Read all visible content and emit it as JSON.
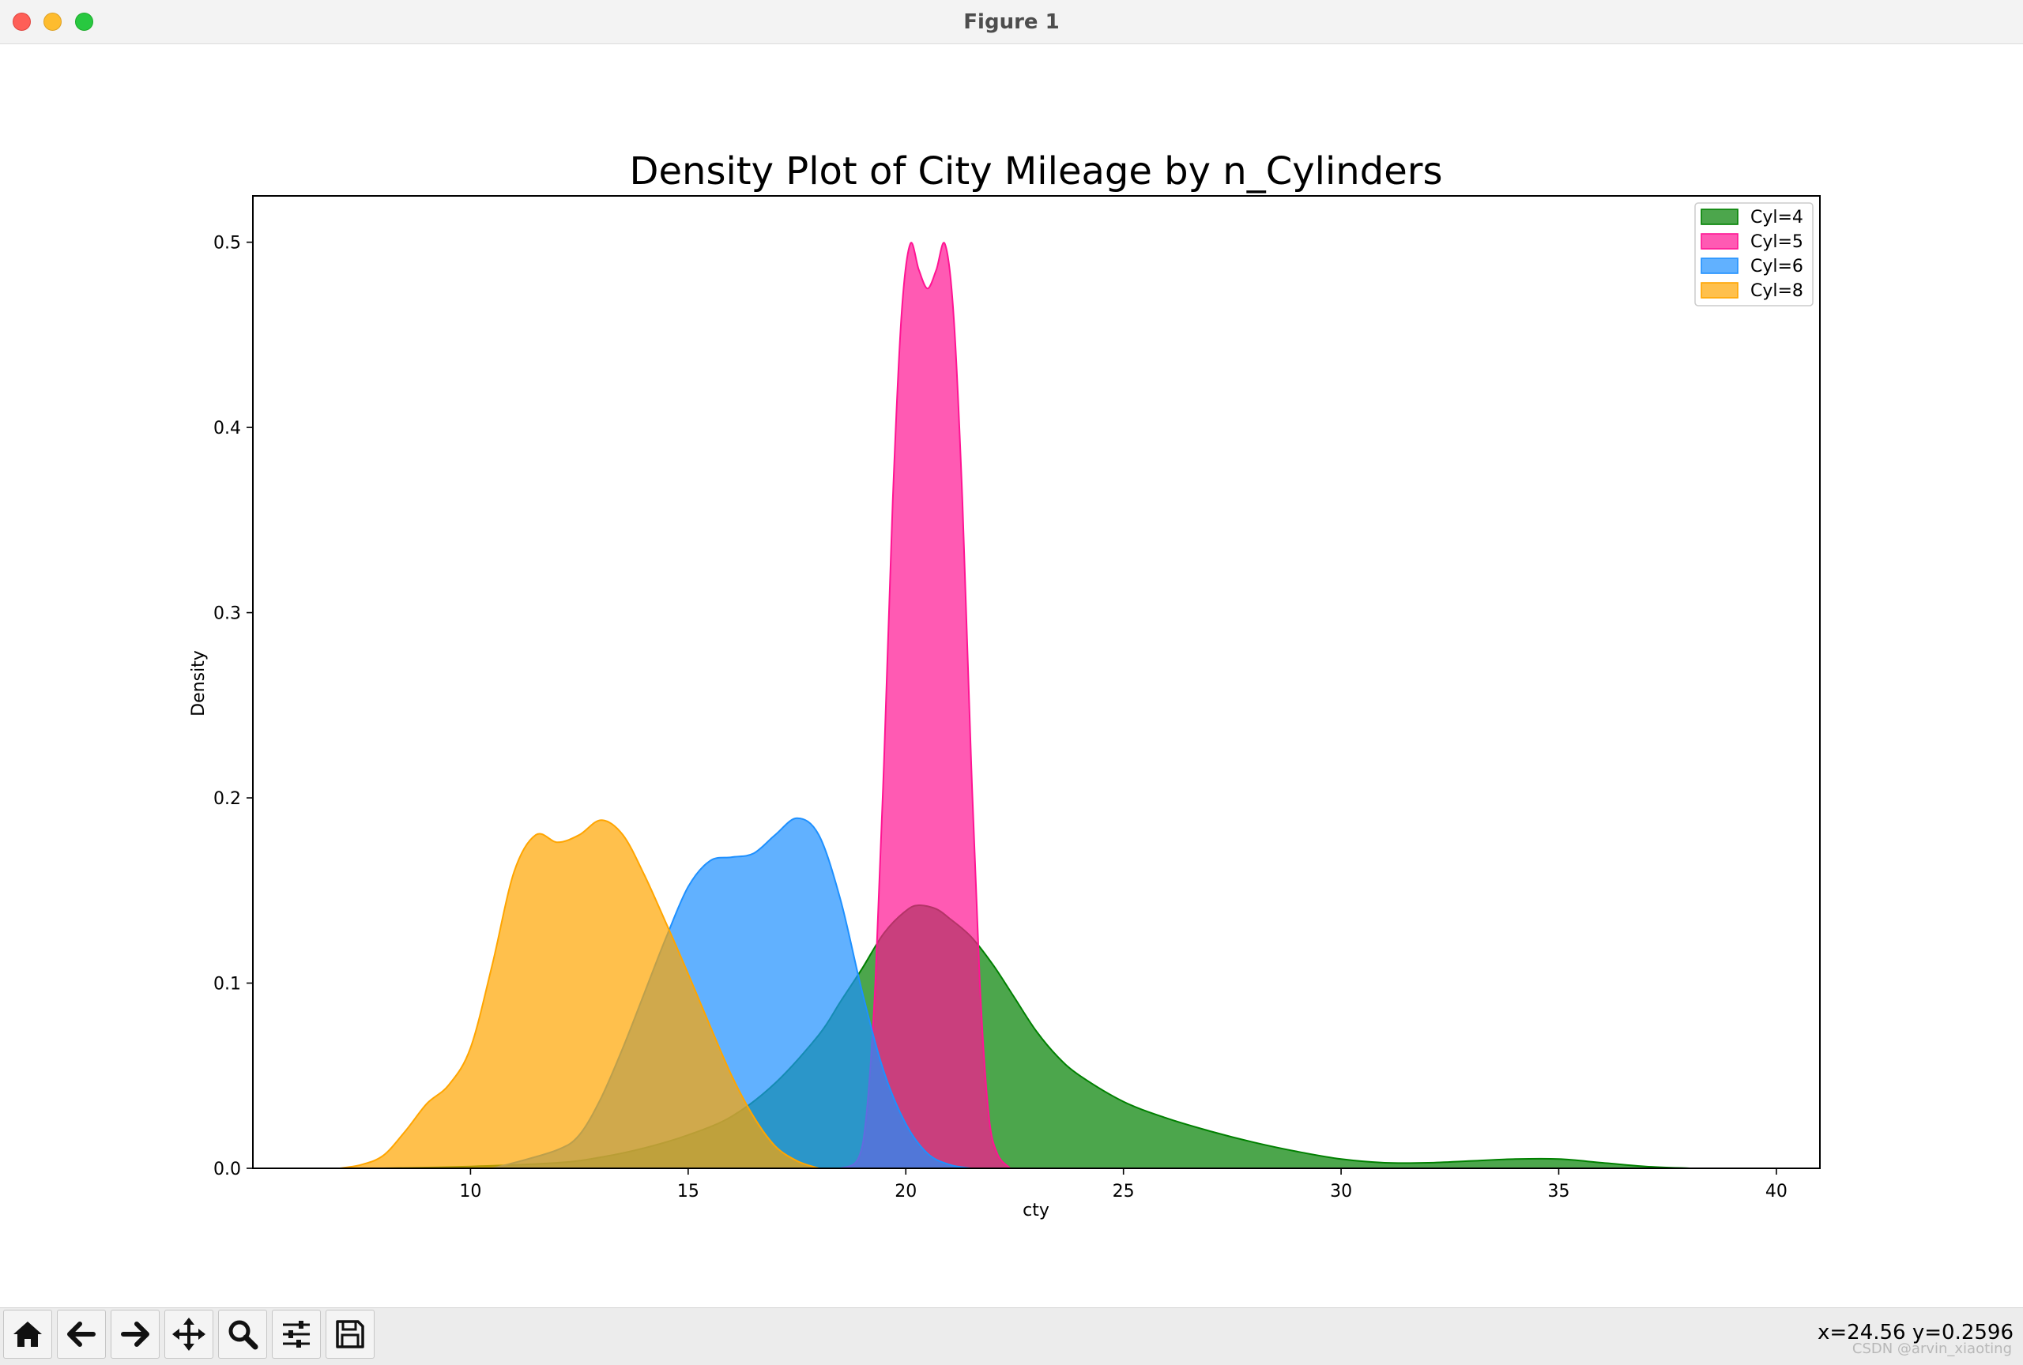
{
  "window": {
    "title": "Figure 1"
  },
  "toolbar": {
    "buttons": [
      {
        "name": "home-button",
        "icon": "home-icon"
      },
      {
        "name": "back-button",
        "icon": "arrow-left-icon"
      },
      {
        "name": "forward-button",
        "icon": "arrow-right-icon"
      },
      {
        "name": "pan-button",
        "icon": "move-icon"
      },
      {
        "name": "zoom-button",
        "icon": "magnifier-icon"
      },
      {
        "name": "configure-subplots-button",
        "icon": "sliders-icon"
      },
      {
        "name": "save-button",
        "icon": "floppy-disk-icon"
      }
    ],
    "coords": "x=24.56 y=0.2596"
  },
  "watermark": "CSDN @arvin_xiaoting",
  "chart_data": {
    "type": "area",
    "title": "Density Plot of City Mileage by n_Cylinders",
    "xlabel": "cty",
    "ylabel": "Density",
    "xlim": [
      5,
      41
    ],
    "ylim": [
      0,
      0.525
    ],
    "xticks": [
      10,
      15,
      20,
      25,
      30,
      35,
      40
    ],
    "yticks": [
      0.0,
      0.1,
      0.2,
      0.3,
      0.4,
      0.5
    ],
    "ytick_labels": [
      "0.0",
      "0.1",
      "0.2",
      "0.3",
      "0.4",
      "0.5"
    ],
    "legend_position": "top-right",
    "grid": false,
    "series": [
      {
        "name": "Cyl=4",
        "color": "#008000",
        "points": [
          [
            8.0,
            0.0
          ],
          [
            10.0,
            0.001
          ],
          [
            12.0,
            0.003
          ],
          [
            13.0,
            0.006
          ],
          [
            14.0,
            0.011
          ],
          [
            15.0,
            0.018
          ],
          [
            16.0,
            0.028
          ],
          [
            17.0,
            0.046
          ],
          [
            18.0,
            0.072
          ],
          [
            18.5,
            0.09
          ],
          [
            19.0,
            0.108
          ],
          [
            19.5,
            0.127
          ],
          [
            20.0,
            0.139
          ],
          [
            20.3,
            0.142
          ],
          [
            20.7,
            0.14
          ],
          [
            21.0,
            0.135
          ],
          [
            21.5,
            0.125
          ],
          [
            22.0,
            0.11
          ],
          [
            22.5,
            0.092
          ],
          [
            23.0,
            0.074
          ],
          [
            23.5,
            0.06
          ],
          [
            24.0,
            0.05
          ],
          [
            25.0,
            0.036
          ],
          [
            26.0,
            0.027
          ],
          [
            27.0,
            0.02
          ],
          [
            28.0,
            0.014
          ],
          [
            29.0,
            0.009
          ],
          [
            30.0,
            0.005
          ],
          [
            31.0,
            0.003
          ],
          [
            32.0,
            0.003
          ],
          [
            33.0,
            0.004
          ],
          [
            34.0,
            0.005
          ],
          [
            35.0,
            0.005
          ],
          [
            36.0,
            0.003
          ],
          [
            37.0,
            0.001
          ],
          [
            38.0,
            0.0
          ]
        ]
      },
      {
        "name": "Cyl=5",
        "color": "#ff1493",
        "points": [
          [
            18.5,
            0.0
          ],
          [
            18.9,
            0.005
          ],
          [
            19.1,
            0.03
          ],
          [
            19.3,
            0.1
          ],
          [
            19.5,
            0.22
          ],
          [
            19.7,
            0.36
          ],
          [
            19.9,
            0.46
          ],
          [
            20.1,
            0.499
          ],
          [
            20.3,
            0.485
          ],
          [
            20.5,
            0.475
          ],
          [
            20.7,
            0.485
          ],
          [
            20.9,
            0.499
          ],
          [
            21.1,
            0.46
          ],
          [
            21.3,
            0.36
          ],
          [
            21.5,
            0.22
          ],
          [
            21.7,
            0.1
          ],
          [
            21.9,
            0.03
          ],
          [
            22.1,
            0.008
          ],
          [
            22.4,
            0.0
          ]
        ]
      },
      {
        "name": "Cyl=6",
        "color": "#1e90ff",
        "points": [
          [
            10.5,
            0.0
          ],
          [
            11.0,
            0.003
          ],
          [
            12.0,
            0.01
          ],
          [
            12.5,
            0.018
          ],
          [
            13.0,
            0.038
          ],
          [
            13.5,
            0.065
          ],
          [
            14.0,
            0.095
          ],
          [
            14.5,
            0.125
          ],
          [
            15.0,
            0.152
          ],
          [
            15.5,
            0.166
          ],
          [
            16.0,
            0.168
          ],
          [
            16.5,
            0.17
          ],
          [
            17.0,
            0.18
          ],
          [
            17.5,
            0.189
          ],
          [
            18.0,
            0.18
          ],
          [
            18.5,
            0.145
          ],
          [
            19.0,
            0.095
          ],
          [
            19.5,
            0.052
          ],
          [
            20.0,
            0.024
          ],
          [
            20.5,
            0.008
          ],
          [
            21.0,
            0.002
          ],
          [
            21.5,
            0.0
          ]
        ]
      },
      {
        "name": "Cyl=8",
        "color": "#ffa500",
        "points": [
          [
            7.0,
            0.0
          ],
          [
            7.5,
            0.002
          ],
          [
            8.0,
            0.007
          ],
          [
            8.5,
            0.02
          ],
          [
            9.0,
            0.035
          ],
          [
            9.5,
            0.045
          ],
          [
            10.0,
            0.065
          ],
          [
            10.5,
            0.11
          ],
          [
            11.0,
            0.16
          ],
          [
            11.5,
            0.18
          ],
          [
            12.0,
            0.176
          ],
          [
            12.5,
            0.18
          ],
          [
            13.0,
            0.188
          ],
          [
            13.5,
            0.18
          ],
          [
            14.0,
            0.158
          ],
          [
            14.5,
            0.132
          ],
          [
            15.0,
            0.105
          ],
          [
            15.5,
            0.077
          ],
          [
            16.0,
            0.05
          ],
          [
            16.5,
            0.028
          ],
          [
            17.0,
            0.012
          ],
          [
            17.5,
            0.004
          ],
          [
            18.0,
            0.0
          ]
        ]
      }
    ]
  }
}
